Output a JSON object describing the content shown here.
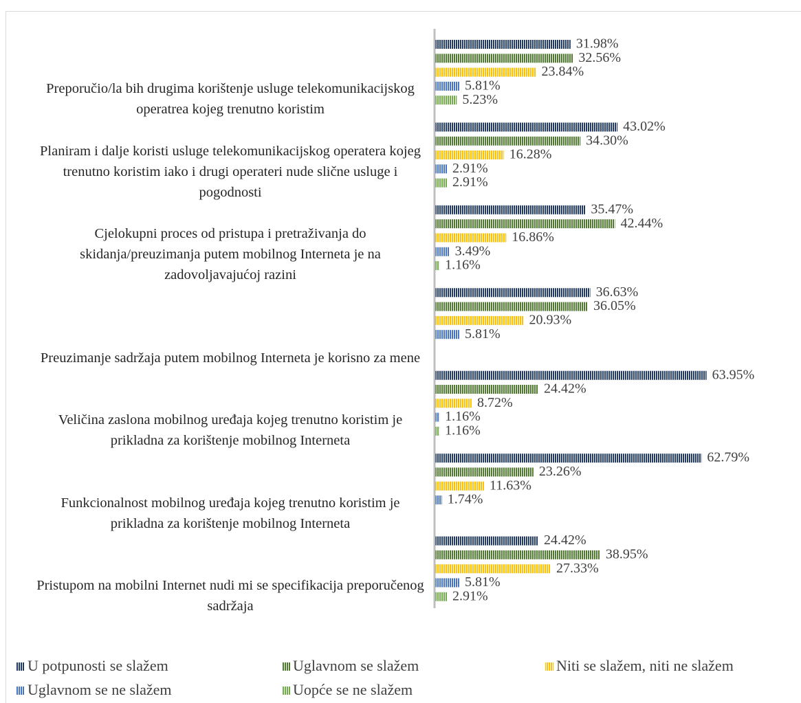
{
  "chart_data": {
    "type": "bar",
    "orientation": "horizontal",
    "categories": [
      "Preporučio/la bih drugima korištenje usluge telekomunikacijskog operatrea kojeg trenutno koristim",
      "Planiram i dalje koristi usluge telekomunikacijskog operatera kojeg trenutno koristim iako i drugi operateri nude slične usluge i pogodnosti",
      "Cjelokupni proces od pristupa i pretraživanja do skidanja/preuzimanja putem mobilnog Interneta je na zadovoljavajućoj razini",
      "Preuzimanje sadržaja putem mobilnog Interneta je korisno za mene",
      "Veličina zaslona mobilnog uređaja kojeg trenutno koristim je prikladna za korištenje mobilnog Interneta",
      "Funkcionalnost mobilnog uređaja kojeg trenutno koristim je prikladna za korištenje mobilnog Interneta",
      "Pristupom na mobilni Internet nudi mi se specifikacija preporučenog sadržaja"
    ],
    "series": [
      {
        "name": "U potpunosti se slažem",
        "color": "#203864",
        "values": [
          31.98,
          43.02,
          35.47,
          36.63,
          63.95,
          62.79,
          24.42
        ],
        "value_labels": [
          "31.98%",
          "43.02%",
          "35.47%",
          "36.63%",
          "63.95%",
          "62.79%",
          "24.42%"
        ]
      },
      {
        "name": "Uglavnom se slažem",
        "color": "#4e7a2e",
        "values": [
          32.56,
          34.3,
          42.44,
          36.05,
          24.42,
          23.26,
          38.95
        ],
        "value_labels": [
          "32.56%",
          "34.30%",
          "42.44%",
          "36.05%",
          "24.42%",
          "23.26%",
          "38.95%"
        ]
      },
      {
        "name": "Niti se slažem, niti ne slažem",
        "color": "#ffc000",
        "values": [
          23.84,
          16.28,
          16.86,
          20.93,
          8.72,
          11.63,
          27.33
        ],
        "value_labels": [
          "23.84%",
          "16.28%",
          "16.86%",
          "20.93%",
          "8.72%",
          "11.63%",
          "27.33%"
        ]
      },
      {
        "name": "Uglavnom se ne slažem",
        "color": "#4472c4",
        "values": [
          5.81,
          2.91,
          3.49,
          5.81,
          1.16,
          1.74,
          5.81
        ],
        "value_labels": [
          "5.81%",
          "2.91%",
          "3.49%",
          "5.81%",
          "1.16%",
          "1.74%",
          "5.81%"
        ]
      },
      {
        "name": "Uopće se ne slažem",
        "color": "#70ad47",
        "values": [
          5.23,
          2.91,
          1.16,
          null,
          1.16,
          null,
          2.91
        ],
        "value_labels": [
          "5.23%",
          "2.91%",
          "1.16%",
          null,
          "1.16%",
          null,
          "2.91%"
        ]
      }
    ],
    "xlim": [
      0,
      70
    ],
    "legend": "bottom"
  }
}
